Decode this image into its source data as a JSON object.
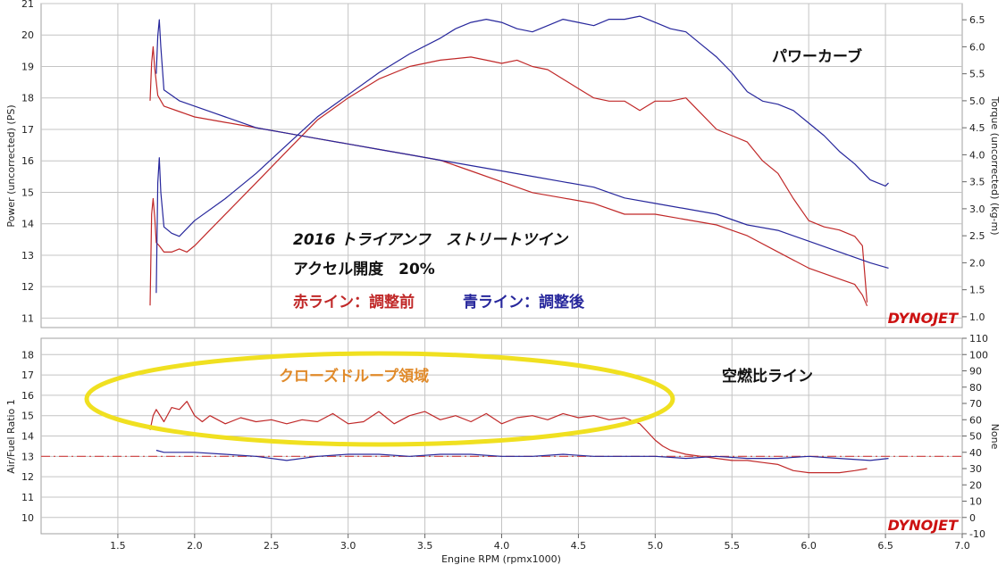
{
  "chart_data": [
    {
      "type": "line",
      "x_label": "Engine RPM (rpmx1000)",
      "x_range": [
        1.0,
        7.0
      ],
      "x_ticks": [
        "1.5",
        "2.0",
        "2.5",
        "3.0",
        "3.5",
        "4.0",
        "4.5",
        "5.0",
        "5.5",
        "6.0",
        "6.5",
        "7.0"
      ],
      "y_left_label": "Power (uncorrected) (PS)",
      "y_left_range": [
        10.7,
        21.0
      ],
      "y_left_ticks": [
        "11",
        "12",
        "13",
        "14",
        "15",
        "16",
        "17",
        "18",
        "19",
        "20",
        "21"
      ],
      "y_right_label": "Torque (uncorrected) (kg-m)",
      "y_right_range": [
        0.8,
        6.8
      ],
      "y_right_ticks": [
        "1.0",
        "1.5",
        "2.0",
        "2.5",
        "3.0",
        "3.5",
        "4.0",
        "4.5",
        "5.0",
        "5.5",
        "6.0",
        "6.5"
      ],
      "grid": true,
      "logo": "DYNOJET",
      "colors": {
        "red": "#c02828",
        "blue": "#27279c"
      },
      "series": [
        {
          "color": "red",
          "axis": "left",
          "quantity": "power",
          "x": [
            1.71,
            1.72,
            1.73,
            1.74,
            1.75,
            1.77,
            1.8,
            1.85,
            1.9,
            1.95,
            2.0,
            2.1,
            2.2,
            2.4,
            2.6,
            2.8,
            3.0,
            3.2,
            3.4,
            3.6,
            3.8,
            3.9,
            4.0,
            4.1,
            4.2,
            4.3,
            4.4,
            4.5,
            4.6,
            4.7,
            4.8,
            4.9,
            5.0,
            5.1,
            5.2,
            5.3,
            5.4,
            5.5,
            5.6,
            5.7,
            5.8,
            5.9,
            6.0,
            6.1,
            6.2,
            6.3,
            6.35,
            6.38
          ],
          "values": [
            11.4,
            14.3,
            14.8,
            14.2,
            13.4,
            13.3,
            13.1,
            13.1,
            13.2,
            13.1,
            13.3,
            13.8,
            14.3,
            15.3,
            16.3,
            17.3,
            18.0,
            18.6,
            19.0,
            19.2,
            19.3,
            19.2,
            19.1,
            19.2,
            19.0,
            18.9,
            18.6,
            18.3,
            18.0,
            17.9,
            17.9,
            17.6,
            17.9,
            17.9,
            18.0,
            17.5,
            17.0,
            16.8,
            16.6,
            16.0,
            15.6,
            14.8,
            14.1,
            13.9,
            13.8,
            13.6,
            13.3,
            11.5
          ]
        },
        {
          "color": "red",
          "axis": "right",
          "quantity": "torque",
          "x": [
            1.71,
            1.72,
            1.73,
            1.74,
            1.76,
            1.8,
            1.9,
            2.0,
            2.2,
            2.4,
            2.6,
            2.8,
            3.0,
            3.2,
            3.4,
            3.6,
            3.8,
            4.0,
            4.2,
            4.4,
            4.6,
            4.8,
            5.0,
            5.2,
            5.4,
            5.6,
            5.8,
            6.0,
            6.2,
            6.3,
            6.35,
            6.38
          ],
          "values": [
            5.0,
            5.7,
            6.0,
            5.6,
            5.1,
            4.9,
            4.8,
            4.7,
            4.6,
            4.5,
            4.4,
            4.3,
            4.2,
            4.1,
            4.0,
            3.9,
            3.7,
            3.5,
            3.3,
            3.2,
            3.1,
            2.9,
            2.9,
            2.8,
            2.7,
            2.5,
            2.2,
            1.9,
            1.7,
            1.6,
            1.4,
            1.2
          ]
        },
        {
          "color": "blue",
          "axis": "left",
          "quantity": "power",
          "x": [
            1.75,
            1.76,
            1.77,
            1.78,
            1.8,
            1.85,
            1.9,
            2.0,
            2.2,
            2.4,
            2.6,
            2.8,
            3.0,
            3.2,
            3.4,
            3.6,
            3.7,
            3.8,
            3.9,
            4.0,
            4.1,
            4.2,
            4.3,
            4.4,
            4.5,
            4.6,
            4.7,
            4.8,
            4.9,
            5.0,
            5.1,
            5.2,
            5.3,
            5.4,
            5.5,
            5.6,
            5.7,
            5.8,
            5.9,
            6.0,
            6.1,
            6.2,
            6.3,
            6.4,
            6.5,
            6.52
          ],
          "values": [
            11.8,
            15.3,
            16.1,
            15.0,
            13.9,
            13.7,
            13.6,
            14.1,
            14.8,
            15.6,
            16.5,
            17.4,
            18.1,
            18.8,
            19.4,
            19.9,
            20.2,
            20.4,
            20.5,
            20.4,
            20.2,
            20.1,
            20.3,
            20.5,
            20.4,
            20.3,
            20.5,
            20.5,
            20.6,
            20.4,
            20.2,
            20.1,
            19.7,
            19.3,
            18.8,
            18.2,
            17.9,
            17.8,
            17.6,
            17.2,
            16.8,
            16.3,
            15.9,
            15.4,
            15.2,
            15.3
          ]
        },
        {
          "color": "blue",
          "axis": "right",
          "quantity": "torque",
          "x": [
            1.75,
            1.76,
            1.77,
            1.78,
            1.8,
            1.9,
            2.0,
            2.2,
            2.4,
            2.6,
            2.8,
            3.0,
            3.2,
            3.4,
            3.6,
            3.8,
            4.0,
            4.2,
            4.4,
            4.6,
            4.8,
            5.0,
            5.2,
            5.4,
            5.6,
            5.8,
            6.0,
            6.2,
            6.4,
            6.52
          ],
          "values": [
            5.5,
            6.2,
            6.5,
            6.0,
            5.2,
            5.0,
            4.9,
            4.7,
            4.5,
            4.4,
            4.3,
            4.2,
            4.1,
            4.0,
            3.9,
            3.8,
            3.7,
            3.6,
            3.5,
            3.4,
            3.2,
            3.1,
            3.0,
            2.9,
            2.7,
            2.6,
            2.4,
            2.2,
            2.0,
            1.9
          ]
        }
      ],
      "annotations": {
        "power_curve": "パワーカーブ",
        "model": "2016 トライアンフ　ストリートツイン",
        "throttle": "アクセル開度　20%",
        "red_line": "赤ライン：調整前",
        "blue_line": "青ライン：調整後"
      }
    },
    {
      "type": "line",
      "x_label": "Engine RPM (rpmx1000)",
      "x_range": [
        1.0,
        7.0
      ],
      "x_ticks": [
        "1.5",
        "2.0",
        "2.5",
        "3.0",
        "3.5",
        "4.0",
        "4.5",
        "5.0",
        "5.5",
        "6.0",
        "6.5",
        "7.0"
      ],
      "y_left_label": "Air/Fuel Ratio 1",
      "y_left_range": [
        9.2,
        18.8
      ],
      "y_left_ticks": [
        "10",
        "11",
        "12",
        "13",
        "14",
        "15",
        "16",
        "17",
        "18"
      ],
      "y_right_label": "None",
      "y_right_range": [
        -10,
        110
      ],
      "y_right_ticks": [
        "-10",
        "0",
        "10",
        "20",
        "30",
        "40",
        "50",
        "60",
        "70",
        "80",
        "90",
        "100",
        "110"
      ],
      "grid": true,
      "logo": "DYNOJET",
      "reference_line": 13.0,
      "colors": {
        "red": "#c02828",
        "blue": "#27279c",
        "reference": "#d04040",
        "highlight": "#f0e020",
        "label": "#e08a2a"
      },
      "series": [
        {
          "color": "red",
          "x": [
            1.71,
            1.73,
            1.75,
            1.8,
            1.85,
            1.9,
            1.95,
            2.0,
            2.05,
            2.1,
            2.2,
            2.3,
            2.4,
            2.5,
            2.6,
            2.7,
            2.8,
            2.9,
            3.0,
            3.1,
            3.2,
            3.3,
            3.4,
            3.5,
            3.6,
            3.7,
            3.8,
            3.9,
            4.0,
            4.1,
            4.2,
            4.3,
            4.4,
            4.5,
            4.6,
            4.7,
            4.8,
            4.9,
            4.95,
            5.0,
            5.05,
            5.1,
            5.2,
            5.3,
            5.4,
            5.5,
            5.6,
            5.7,
            5.8,
            5.9,
            6.0,
            6.1,
            6.2,
            6.3,
            6.38
          ],
          "values": [
            14.3,
            15.0,
            15.3,
            14.7,
            15.4,
            15.3,
            15.7,
            15.0,
            14.7,
            15.0,
            14.6,
            14.9,
            14.7,
            14.8,
            14.6,
            14.8,
            14.7,
            15.1,
            14.6,
            14.7,
            15.2,
            14.6,
            15.0,
            15.2,
            14.8,
            15.0,
            14.7,
            15.1,
            14.6,
            14.9,
            15.0,
            14.8,
            15.1,
            14.9,
            15.0,
            14.8,
            14.9,
            14.6,
            14.2,
            13.8,
            13.5,
            13.3,
            13.1,
            13.0,
            12.9,
            12.8,
            12.8,
            12.7,
            12.6,
            12.3,
            12.2,
            12.2,
            12.2,
            12.3,
            12.4
          ]
        },
        {
          "color": "blue",
          "x": [
            1.75,
            1.8,
            1.9,
            2.0,
            2.2,
            2.4,
            2.6,
            2.8,
            3.0,
            3.2,
            3.4,
            3.6,
            3.8,
            4.0,
            4.2,
            4.4,
            4.6,
            4.8,
            5.0,
            5.2,
            5.4,
            5.6,
            5.8,
            6.0,
            6.2,
            6.4,
            6.52
          ],
          "values": [
            13.3,
            13.2,
            13.2,
            13.2,
            13.1,
            13.0,
            12.8,
            13.0,
            13.1,
            13.1,
            13.0,
            13.1,
            13.1,
            13.0,
            13.0,
            13.1,
            13.0,
            13.0,
            13.0,
            12.9,
            13.0,
            12.9,
            12.9,
            13.0,
            12.9,
            12.8,
            12.9
          ]
        }
      ],
      "annotations": {
        "closed_loop": "クローズドループ領域",
        "afr_line": "空燃比ライン"
      }
    }
  ]
}
